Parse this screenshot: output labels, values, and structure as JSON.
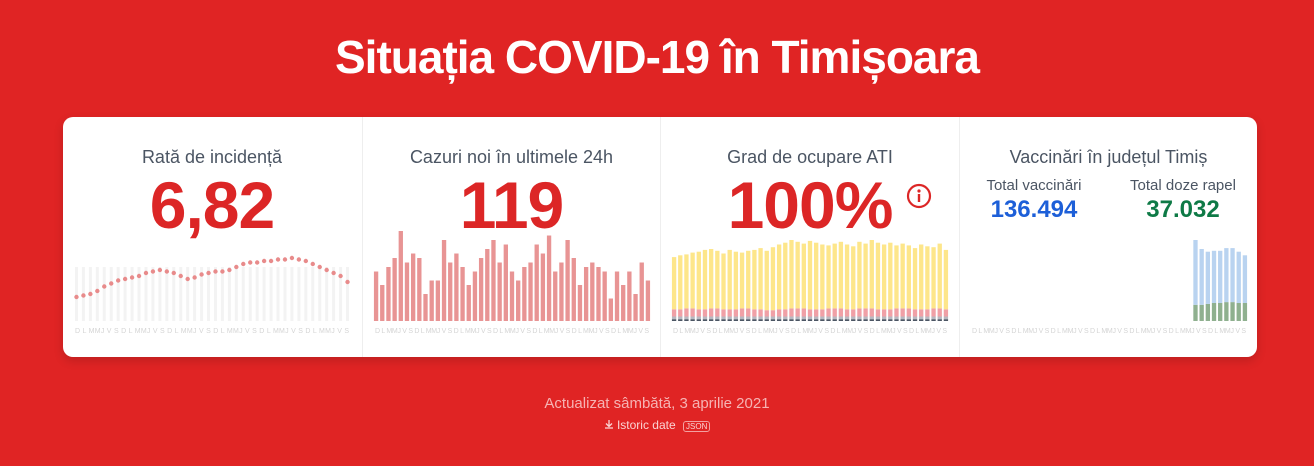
{
  "header": {
    "title": "Situația COVID-19 în Timișoara"
  },
  "cards": [
    {
      "title": "Rată de incidență",
      "value": "6,82",
      "chart": {
        "type": "dots",
        "color": "#e88b8b",
        "ylim": [
          0,
          6
        ],
        "values": [
          1.6,
          1.7,
          1.8,
          2.0,
          2.3,
          2.5,
          2.7,
          2.8,
          2.9,
          3.0,
          3.2,
          3.3,
          3.4,
          3.3,
          3.2,
          3.0,
          2.8,
          2.9,
          3.1,
          3.2,
          3.3,
          3.3,
          3.4,
          3.6,
          3.8,
          3.9,
          3.9,
          4.0,
          4.0,
          4.1,
          4.1,
          4.2,
          4.1,
          4.0,
          3.8,
          3.6,
          3.4,
          3.2,
          3.0,
          2.6
        ],
        "x_labels": "D L MMJ V S D L MMJ V S D L MMJ V S D L MMJ V S D L MMJ V S D L MMJ V S"
      }
    },
    {
      "title": "Cazuri noi în ultimele 24h",
      "value": "119",
      "chart": {
        "type": "bar",
        "color": "#e89494",
        "ylim": [
          0,
          200
        ],
        "values": [
          110,
          80,
          120,
          140,
          200,
          130,
          150,
          140,
          60,
          90,
          90,
          180,
          130,
          150,
          120,
          80,
          110,
          140,
          160,
          180,
          130,
          170,
          110,
          90,
          120,
          130,
          170,
          150,
          190,
          110,
          130,
          180,
          140,
          80,
          120,
          130,
          120,
          110,
          50,
          110,
          80,
          110,
          60,
          130,
          90
        ],
        "x_labels": "D L MMJ V S D L MMJ V S D L MMJ V S D L MMJ V S D L MMJ V S D L MMJ V S D L MMJ V S"
      }
    },
    {
      "title": "Grad de ocupare ATI",
      "value": "100%",
      "chart": {
        "type": "stacked",
        "ylim": [
          0,
          100
        ],
        "series": [
          {
            "color": "#4b5563",
            "values": [
              2,
              2,
              2,
              2,
              2,
              2,
              2,
              2,
              2,
              2,
              2,
              2,
              2,
              2,
              2,
              2,
              2,
              2,
              2,
              2,
              2,
              2,
              2,
              2,
              2,
              2,
              2,
              2,
              2,
              2,
              2,
              2,
              2,
              2,
              2,
              2,
              2,
              2,
              2,
              2,
              2,
              2,
              2,
              2,
              2
            ]
          },
          {
            "color": "#b8b8c0",
            "values": [
              3,
              3,
              3,
              3,
              3,
              3,
              3,
              3,
              3,
              3,
              3,
              3,
              3,
              3,
              3,
              3,
              3,
              3,
              3,
              3,
              3,
              3,
              3,
              3,
              3,
              3,
              3,
              3,
              3,
              3,
              3,
              3,
              3,
              3,
              3,
              3,
              3,
              3,
              3,
              3,
              3,
              3,
              3,
              3,
              3
            ]
          },
          {
            "color": "#f0a0a6",
            "values": [
              8,
              8,
              9,
              9,
              8,
              8,
              9,
              9,
              8,
              8,
              8,
              9,
              9,
              8,
              8,
              7,
              7,
              8,
              8,
              9,
              9,
              9,
              8,
              8,
              8,
              9,
              9,
              9,
              8,
              8,
              9,
              9,
              9,
              8,
              8,
              8,
              9,
              9,
              9,
              8,
              8,
              8,
              9,
              9,
              8
            ]
          },
          {
            "color": "#fde68a",
            "values": [
              58,
              60,
              60,
              62,
              64,
              66,
              66,
              64,
              62,
              66,
              64,
              62,
              64,
              66,
              68,
              66,
              70,
              72,
              74,
              76,
              74,
              72,
              76,
              74,
              72,
              70,
              72,
              74,
              72,
              70,
              74,
              72,
              76,
              74,
              72,
              74,
              70,
              72,
              70,
              68,
              72,
              70,
              68,
              72,
              66
            ]
          }
        ],
        "x_labels": "D L MMJ V S D L MMJ V S D L MMJ V S D L MMJ V S D L MMJ V S D L MMJ V S D L MMJ V S"
      }
    },
    {
      "title": "Vaccinări în județul Timiș",
      "stats": [
        {
          "label": "Total vaccinări",
          "value": "136.494",
          "color": "#1d5fd8"
        },
        {
          "label": "Total doze rapel",
          "value": "37.032",
          "color": "#0e7a46"
        }
      ],
      "chart": {
        "type": "stacked",
        "ylim": [
          0,
          100
        ],
        "series": [
          {
            "color": "#8fb08f",
            "values": [
              18,
              18,
              19,
              20,
              20,
              21,
              21,
              20,
              20
            ]
          },
          {
            "color": "#b9d3f0",
            "values": [
              72,
              62,
              58,
              58,
              58,
              60,
              60,
              57,
              53
            ]
          }
        ],
        "x_labels": "D L MMJ V S D L MMJ V S D L MMJ V S D L MMJ V S D L MMJ V S D L MMJ V S D L MMJ V S"
      }
    }
  ],
  "footer": {
    "updated": "Actualizat sâmbătă, 3 aprilie 2021",
    "history": "Istoric date",
    "badge": "JSON"
  }
}
